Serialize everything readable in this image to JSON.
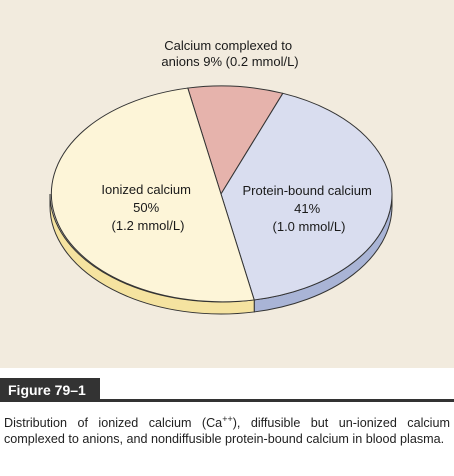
{
  "figure": {
    "label": "Figure 79–1",
    "caption": {
      "part1": "Distribution of ionized calcium (Ca",
      "superscript": "++",
      "part2": "), diffusible but un-ionized calcium complexed to anions, and nondiffusible protein-bound calcium in blood plasma."
    }
  },
  "colors": {
    "panel_background": "#f2ebde",
    "ionized": "#fdf5d8",
    "ionized_side": "#f5e3a0",
    "protein_bound": "#d9ddef",
    "protein_bound_side": "#a9b4d6",
    "complexed": "#e6b3ac",
    "outline": "#333333"
  },
  "chart_data": {
    "type": "pie",
    "unit": "mmol/L",
    "slices": [
      {
        "key": "complexed",
        "percent": 9,
        "mmol": 0.2,
        "label_lines": [
          "Calcium complexed to",
          "anions 9% (0.2 mmol/L)"
        ]
      },
      {
        "key": "protein_bound",
        "percent": 41,
        "mmol": 1.0,
        "label_lines": [
          "Protein-bound calcium",
          "41%",
          "(1.0 mmol/L)"
        ]
      },
      {
        "key": "ionized",
        "percent": 50,
        "mmol": 1.2,
        "label_lines": [
          "Ionized calcium",
          "50%",
          "(1.2 mmol/L)"
        ]
      }
    ]
  }
}
